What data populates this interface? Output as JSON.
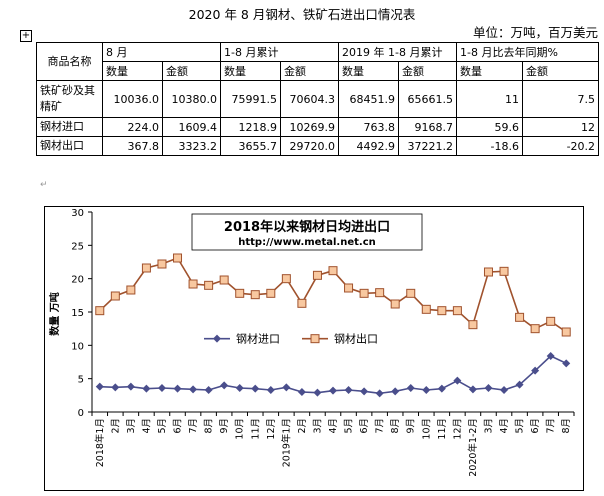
{
  "doc": {
    "title": "2020 年 8 月钢材、铁矿石进出口情况表",
    "unit": "单位：万吨，百万美元",
    "anchor_icon": "move-handle-icon"
  },
  "table": {
    "col_name": "商品名称",
    "groups": [
      "8 月",
      "1-8 月累计",
      "2019 年 1-8 月累计",
      "1-8 月比去年同期%"
    ],
    "subheads": [
      "数量",
      "金额",
      "数量",
      "金额",
      "数量",
      "金额",
      "数量",
      "金额"
    ],
    "rows": [
      {
        "name": "铁矿砂及其精矿",
        "values": [
          "10036.0",
          "10380.0",
          "75991.5",
          "70604.3",
          "68451.9",
          "65661.5",
          "11",
          "7.5"
        ]
      },
      {
        "name": "钢材进口",
        "values": [
          "224.0",
          "1609.4",
          "1218.9",
          "10269.9",
          "763.8",
          "9168.7",
          "59.6",
          "12"
        ]
      },
      {
        "name": "钢材出口",
        "values": [
          "367.8",
          "3323.2",
          "3655.7",
          "29720.0",
          "4492.9",
          "37221.2",
          "-18.6",
          "-20.2"
        ]
      }
    ]
  },
  "chart_data": {
    "type": "line",
    "title": "2018年以来钢材日均进出口",
    "subtitle": "http://www.metal.net.cn",
    "ylabel": "数量 万吨",
    "xlabel": "",
    "ylim": [
      0,
      30
    ],
    "yticks": [
      0,
      5,
      10,
      15,
      20,
      25,
      30
    ],
    "grid": false,
    "legend": "middle-left",
    "x": [
      "2018年1月",
      "2月",
      "3月",
      "4月",
      "5月",
      "6月",
      "7月",
      "8月",
      "9月",
      "10月",
      "11月",
      "12月",
      "2019年1月",
      "2月",
      "3月",
      "4月",
      "5月",
      "6月",
      "7月",
      "8月",
      "9月",
      "10月",
      "11月",
      "12月",
      "2020年1-2月",
      "3月",
      "4月",
      "5月",
      "6月",
      "7月",
      "8月"
    ],
    "series": [
      {
        "name": "钢材进口",
        "color": "#4a4e8c",
        "marker": "diamond",
        "values": [
          3.8,
          3.7,
          3.8,
          3.5,
          3.6,
          3.5,
          3.4,
          3.3,
          4.0,
          3.6,
          3.5,
          3.3,
          3.7,
          3.0,
          2.9,
          3.2,
          3.3,
          3.1,
          2.8,
          3.1,
          3.6,
          3.3,
          3.5,
          4.7,
          3.4,
          3.6,
          3.3,
          4.1,
          6.2,
          8.4,
          7.3
        ]
      },
      {
        "name": "钢材出口",
        "color": "#a0522d",
        "fill": "#f8c8a0",
        "marker": "square",
        "values": [
          15.2,
          17.4,
          18.3,
          21.6,
          22.2,
          23.1,
          19.2,
          19.0,
          19.8,
          17.8,
          17.6,
          17.8,
          20.0,
          16.3,
          20.5,
          21.2,
          18.6,
          17.8,
          17.9,
          16.2,
          17.8,
          15.4,
          15.2,
          15.2,
          13.1,
          21.0,
          21.1,
          14.2,
          12.5,
          13.6,
          12.0
        ]
      }
    ]
  }
}
